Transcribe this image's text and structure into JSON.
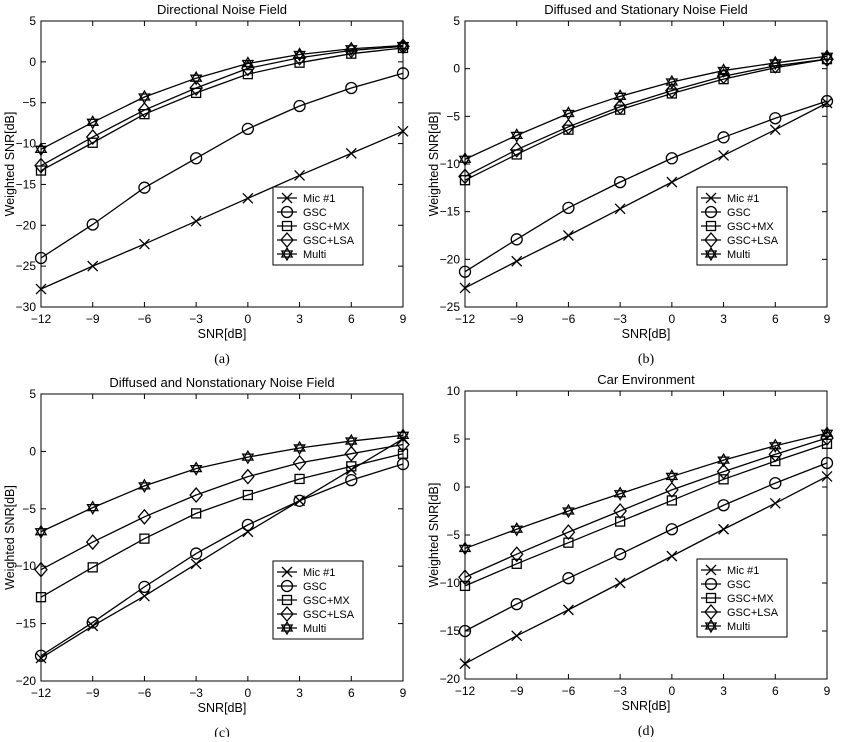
{
  "chart_data": [
    {
      "type": "line",
      "title": "Directional Noise Field",
      "xlabel": "SNR[dB]",
      "ylabel": "Weighted SNR[dB]",
      "panel_label": "(a)",
      "x": [
        -12,
        -9,
        -6,
        -3,
        0,
        3,
        6,
        9
      ],
      "xticks": [
        -12,
        -9,
        -6,
        -3,
        0,
        3,
        6,
        9
      ],
      "xlim": [
        -12,
        9
      ],
      "ylim": [
        -30,
        5
      ],
      "yticks": [
        -30,
        -25,
        -20,
        -15,
        -10,
        -5,
        0,
        5
      ],
      "legend_position": "lower-right",
      "series": [
        {
          "name": "Mic #1",
          "marker": "x",
          "values": [
            -27.8,
            -25.0,
            -22.3,
            -19.5,
            -16.7,
            -13.9,
            -11.2,
            -8.5
          ]
        },
        {
          "name": "GSC",
          "marker": "o",
          "values": [
            -24.0,
            -19.9,
            -15.4,
            -11.8,
            -8.2,
            -5.4,
            -3.2,
            -1.4
          ]
        },
        {
          "name": "GSC+MX",
          "marker": "s",
          "values": [
            -13.3,
            -9.9,
            -6.4,
            -3.8,
            -1.5,
            -0.1,
            1.0,
            1.7
          ]
        },
        {
          "name": "GSC+LSA",
          "marker": "d",
          "values": [
            -12.7,
            -9.2,
            -5.9,
            -3.2,
            -0.8,
            0.5,
            1.4,
            1.9
          ]
        },
        {
          "name": "Multi",
          "marker": "star",
          "values": [
            -10.7,
            -7.4,
            -4.3,
            -2.0,
            -0.2,
            0.9,
            1.6,
            2.0
          ]
        }
      ]
    },
    {
      "type": "line",
      "title": "Diffused and Stationary Noise Field",
      "xlabel": "SNR[dB]",
      "ylabel": "Weighted SNR[dB]",
      "panel_label": "(b)",
      "x": [
        -12,
        -9,
        -6,
        -3,
        0,
        3,
        6,
        9
      ],
      "xticks": [
        -12,
        -9,
        -6,
        -3,
        0,
        3,
        6,
        9
      ],
      "xlim": [
        -12,
        9
      ],
      "ylim": [
        -25,
        5
      ],
      "yticks": [
        -25,
        -20,
        -15,
        -10,
        -5,
        0,
        5
      ],
      "legend_position": "lower-right",
      "series": [
        {
          "name": "Mic #1",
          "marker": "x",
          "values": [
            -23.0,
            -20.2,
            -17.5,
            -14.7,
            -11.9,
            -9.1,
            -6.4,
            -3.6
          ]
        },
        {
          "name": "GSC",
          "marker": "o",
          "values": [
            -21.3,
            -17.9,
            -14.6,
            -11.9,
            -9.4,
            -7.2,
            -5.2,
            -3.4
          ]
        },
        {
          "name": "GSC+MX",
          "marker": "s",
          "values": [
            -11.7,
            -9.0,
            -6.4,
            -4.3,
            -2.6,
            -1.1,
            0.1,
            1.0
          ]
        },
        {
          "name": "GSC+LSA",
          "marker": "d",
          "values": [
            -11.3,
            -8.5,
            -6.1,
            -4.0,
            -2.3,
            -0.8,
            0.3,
            1.0
          ]
        },
        {
          "name": "Multi",
          "marker": "star",
          "values": [
            -9.5,
            -7.0,
            -4.7,
            -2.9,
            -1.4,
            -0.2,
            0.6,
            1.3
          ]
        }
      ]
    },
    {
      "type": "line",
      "title": "Diffused and Nonstationary Noise Field",
      "xlabel": "SNR[dB]",
      "ylabel": "Weighted SNR[dB]",
      "panel_label": "(c)",
      "x": [
        -12,
        -9,
        -6,
        -3,
        0,
        3,
        6,
        9
      ],
      "xticks": [
        -12,
        -9,
        -6,
        -3,
        0,
        3,
        6,
        9
      ],
      "xlim": [
        -12,
        9
      ],
      "ylim": [
        -20,
        5
      ],
      "yticks": [
        -20,
        -15,
        -10,
        -5,
        0,
        5
      ],
      "legend_position": "lower-right",
      "series": [
        {
          "name": "Mic #1",
          "marker": "x",
          "values": [
            -18.0,
            -15.2,
            -12.6,
            -9.8,
            -7.0,
            -4.3,
            -1.6,
            1.1
          ]
        },
        {
          "name": "GSC",
          "marker": "o",
          "values": [
            -17.8,
            -14.9,
            -11.8,
            -8.9,
            -6.4,
            -4.3,
            -2.5,
            -1.1
          ]
        },
        {
          "name": "GSC+MX",
          "marker": "s",
          "values": [
            -12.7,
            -10.1,
            -7.6,
            -5.4,
            -3.8,
            -2.4,
            -1.3,
            -0.2
          ]
        },
        {
          "name": "GSC+LSA",
          "marker": "d",
          "values": [
            -10.3,
            -7.9,
            -5.7,
            -3.8,
            -2.2,
            -1.0,
            -0.2,
            0.6
          ]
        },
        {
          "name": "Multi",
          "marker": "star",
          "values": [
            -7.0,
            -4.9,
            -3.0,
            -1.5,
            -0.5,
            0.3,
            0.9,
            1.4
          ]
        }
      ]
    },
    {
      "type": "line",
      "title": "Car Environment",
      "xlabel": "SNR[dB]",
      "ylabel": "Weighted SNR[dB]",
      "panel_label": "(d)",
      "x": [
        -12,
        -9,
        -6,
        -3,
        0,
        3,
        6,
        9
      ],
      "xticks": [
        -12,
        -9,
        -6,
        -3,
        0,
        3,
        6,
        9
      ],
      "xlim": [
        -12,
        9
      ],
      "ylim": [
        -20,
        10
      ],
      "yticks": [
        -20,
        -15,
        -10,
        -5,
        0,
        5,
        10
      ],
      "legend_position": "lower-right",
      "series": [
        {
          "name": "Mic #1",
          "marker": "x",
          "values": [
            -18.4,
            -15.5,
            -12.8,
            -10.0,
            -7.2,
            -4.4,
            -1.7,
            1.1
          ]
        },
        {
          "name": "GSC",
          "marker": "o",
          "values": [
            -15.0,
            -12.2,
            -9.5,
            -7.0,
            -4.4,
            -1.9,
            0.4,
            2.5
          ]
        },
        {
          "name": "GSC+MX",
          "marker": "s",
          "values": [
            -10.3,
            -8.0,
            -5.8,
            -3.6,
            -1.4,
            0.8,
            2.7,
            4.5
          ]
        },
        {
          "name": "GSC+LSA",
          "marker": "d",
          "values": [
            -9.4,
            -7.0,
            -4.7,
            -2.5,
            -0.3,
            1.6,
            3.4,
            5.1
          ]
        },
        {
          "name": "Multi",
          "marker": "star",
          "values": [
            -6.4,
            -4.4,
            -2.5,
            -0.7,
            1.1,
            2.8,
            4.3,
            5.6
          ]
        }
      ]
    }
  ]
}
